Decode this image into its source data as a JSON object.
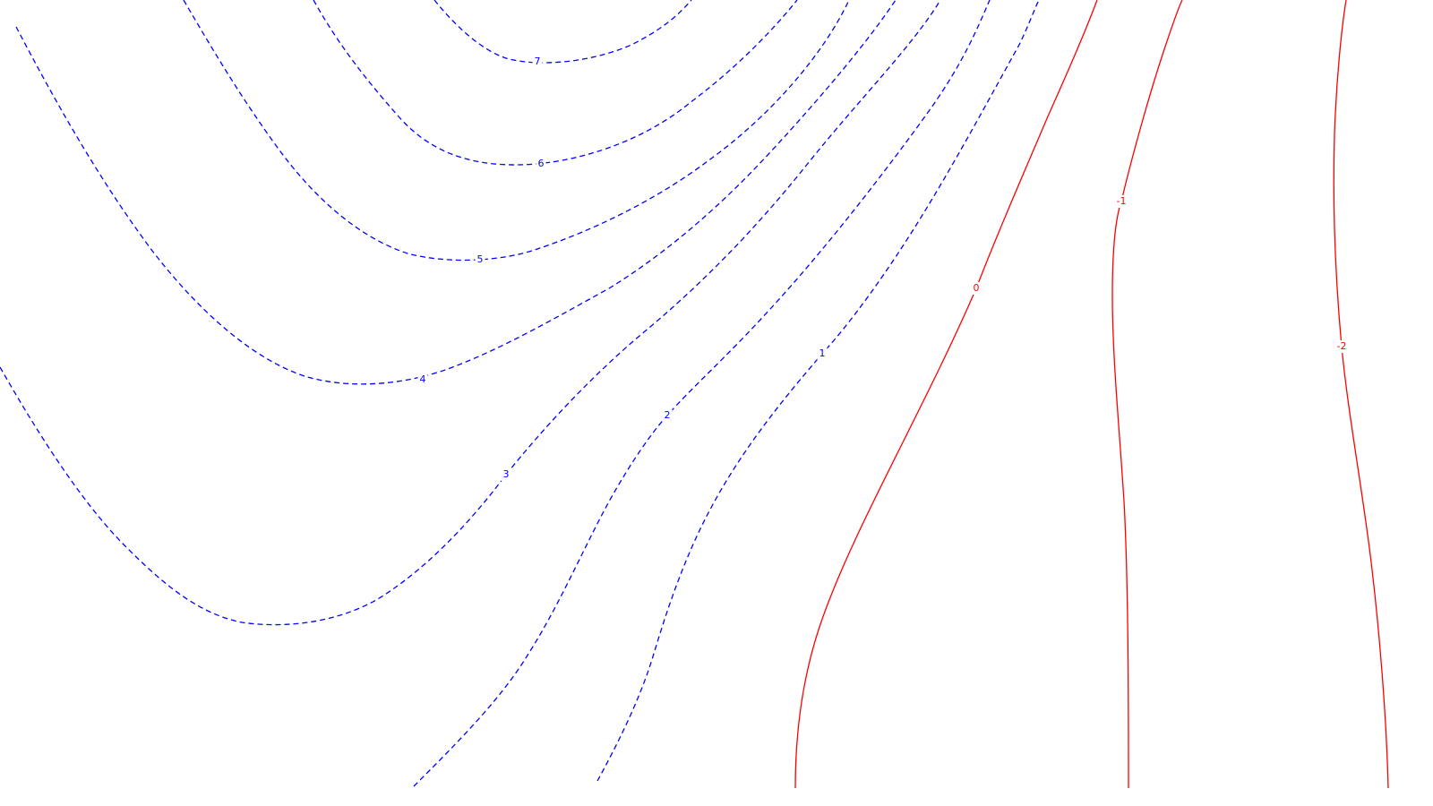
{
  "map": {
    "colors": {
      "dashed": "#0000ff",
      "solid": "#ff0000",
      "background": "#ffffff"
    },
    "contours": [
      {
        "id": "c-7",
        "label": "7",
        "style": "dashed"
      },
      {
        "id": "c-6",
        "label": "6",
        "style": "dashed"
      },
      {
        "id": "c-5",
        "label": "5",
        "style": "dashed"
      },
      {
        "id": "c-4",
        "label": "4",
        "style": "dashed"
      },
      {
        "id": "c-3",
        "label": "3",
        "style": "dashed"
      },
      {
        "id": "c-2",
        "label": "2",
        "style": "dashed"
      },
      {
        "id": "c-1",
        "label": "1",
        "style": "dashed"
      },
      {
        "id": "c-0",
        "label": "0",
        "style": "solid"
      },
      {
        "id": "c-m1",
        "label": "-1",
        "style": "solid"
      },
      {
        "id": "c-m2",
        "label": "-2",
        "style": "solid"
      }
    ]
  }
}
